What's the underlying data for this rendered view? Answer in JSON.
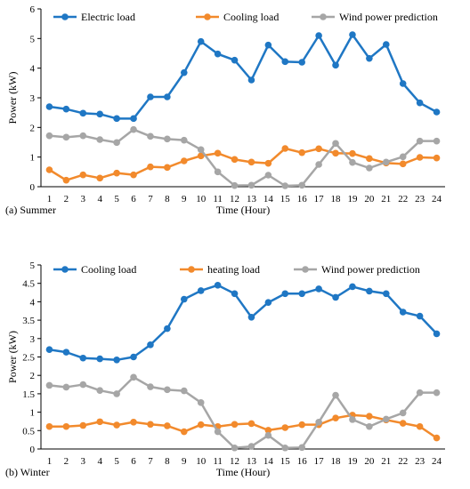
{
  "chart_data": [
    {
      "type": "line",
      "caption": "(a) Summer",
      "xlabel": "Time (Hour)",
      "ylabel": "Power (kW)",
      "ylim": [
        0,
        6
      ],
      "yticks": [
        "0",
        "1",
        "2",
        "3",
        "4",
        "5",
        "6"
      ],
      "grid": false,
      "legend": "top",
      "categories": [
        "1",
        "2",
        "3",
        "4",
        "5",
        "6",
        "7",
        "8",
        "9",
        "10",
        "11",
        "12",
        "13",
        "14",
        "15",
        "16",
        "17",
        "18",
        "19",
        "20",
        "21",
        "22",
        "23",
        "24"
      ],
      "series": [
        {
          "name": "Electric load",
          "color": "#1f77c4",
          "values": [
            2.7,
            2.62,
            2.48,
            2.45,
            2.3,
            2.3,
            3.03,
            3.03,
            3.85,
            4.9,
            4.48,
            4.27,
            3.6,
            4.78,
            4.22,
            4.2,
            5.1,
            4.1,
            5.13,
            4.33,
            4.8,
            3.48,
            2.83,
            2.52
          ]
        },
        {
          "name": "Cooling load",
          "color": "#f28a2c",
          "values": [
            0.57,
            0.22,
            0.4,
            0.29,
            0.46,
            0.4,
            0.67,
            0.65,
            0.87,
            1.04,
            1.13,
            0.92,
            0.83,
            0.79,
            1.29,
            1.15,
            1.28,
            1.13,
            1.12,
            0.95,
            0.8,
            0.77,
            0.99,
            0.97
          ]
        },
        {
          "name": "Wind power prediction",
          "color": "#a6a6a6",
          "values": [
            1.72,
            1.67,
            1.72,
            1.59,
            1.49,
            1.93,
            1.7,
            1.61,
            1.57,
            1.25,
            0.5,
            0.04,
            0.05,
            0.39,
            0.03,
            0.05,
            0.75,
            1.46,
            0.82,
            0.63,
            0.83,
            1.01,
            1.54,
            1.54
          ]
        }
      ]
    },
    {
      "type": "line",
      "caption": "(b) Winter",
      "xlabel": "Time (Hour)",
      "ylabel": "Power (kW)",
      "ylim": [
        0,
        5
      ],
      "yticks": [
        "0",
        "0.5",
        "1",
        "1.5",
        "2",
        "2.5",
        "3",
        "3.5",
        "4",
        "4.5",
        "5"
      ],
      "grid": false,
      "legend": "top",
      "categories": [
        "1",
        "2",
        "3",
        "4",
        "5",
        "6",
        "7",
        "8",
        "9",
        "10",
        "11",
        "12",
        "13",
        "14",
        "15",
        "16",
        "17",
        "18",
        "19",
        "20",
        "21",
        "22",
        "23",
        "24"
      ],
      "series": [
        {
          "name": "Cooling load",
          "color": "#1f77c4",
          "values": [
            2.7,
            2.63,
            2.47,
            2.45,
            2.42,
            2.5,
            2.83,
            3.27,
            4.07,
            4.3,
            4.45,
            4.22,
            3.58,
            3.98,
            4.22,
            4.22,
            4.35,
            4.12,
            4.41,
            4.29,
            4.22,
            3.72,
            3.61,
            3.13
          ]
        },
        {
          "name": "heating load",
          "color": "#f28a2c",
          "values": [
            0.61,
            0.61,
            0.64,
            0.74,
            0.65,
            0.73,
            0.67,
            0.63,
            0.47,
            0.66,
            0.61,
            0.67,
            0.69,
            0.51,
            0.58,
            0.66,
            0.66,
            0.84,
            0.92,
            0.89,
            0.79,
            0.7,
            0.61,
            0.3
          ]
        },
        {
          "name": "Wind power prediction",
          "color": "#a6a6a6",
          "values": [
            1.73,
            1.68,
            1.75,
            1.59,
            1.5,
            1.95,
            1.69,
            1.61,
            1.58,
            1.26,
            0.47,
            0.03,
            0.07,
            0.37,
            0.03,
            0.04,
            0.73,
            1.46,
            0.8,
            0.61,
            0.81,
            0.98,
            1.53,
            1.53
          ]
        }
      ]
    }
  ]
}
